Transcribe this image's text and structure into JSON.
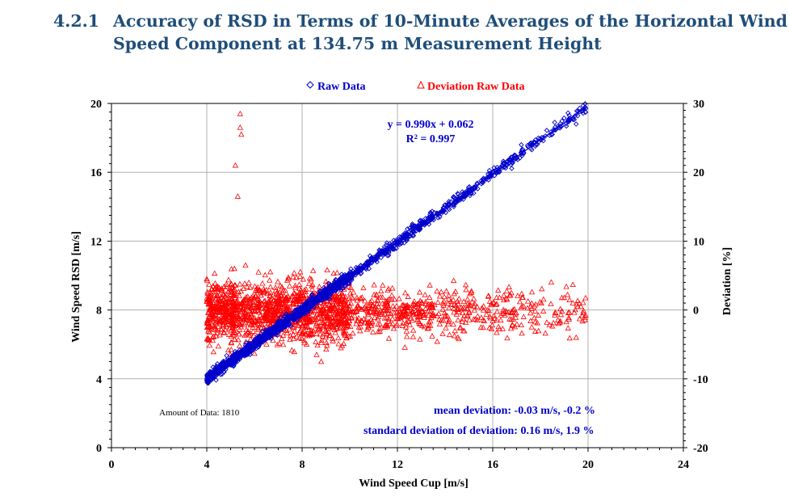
{
  "section": {
    "number": "4.2.1",
    "title": "Accuracy of RSD in Terms of 10-Minute Averages of the Horizontal Wind Speed Component at 134.75 m Measurement Height"
  },
  "colors": {
    "heading": "#1f4e79",
    "raw": "#0000cc",
    "deviation": "#ff0000",
    "grid": "#b0b0b0",
    "axis": "#000000"
  },
  "chart_data": {
    "type": "scatter",
    "xlabel": "Wind Speed Cup [m/s]",
    "ylabel": "Wind Speed RSD [m/s]",
    "y2label": "Deviation [%]",
    "xlim": [
      0,
      24
    ],
    "ylim": [
      0,
      20
    ],
    "y2lim": [
      -20,
      30
    ],
    "xticks": [
      0,
      4,
      8,
      12,
      16,
      20,
      24
    ],
    "yticks": [
      0,
      4,
      8,
      12,
      16,
      20
    ],
    "y2ticks": [
      -20,
      -10,
      0,
      10,
      20,
      30
    ],
    "legend": [
      {
        "label": "Raw Data",
        "marker": "diamond"
      },
      {
        "label": "Deviation Raw Data",
        "marker": "triangle"
      }
    ],
    "regression": {
      "slope": 0.99,
      "intercept": 0.062,
      "equation": "y = 0.990x + 0.062",
      "r2": "R² = 0.997",
      "x_range": [
        4.0,
        19.9
      ]
    },
    "annotations": {
      "amount": "Amount of Data: 1810",
      "mean": "mean deviation: -0.03 m/s, -0.2 %",
      "std": "standard deviation of deviation: 0.16 m/s, 1.9 %"
    },
    "series": [
      {
        "name": "Raw Data",
        "axis": "left",
        "marker": "diamond",
        "x_range": [
          4.0,
          19.9
        ],
        "n_points": 1810,
        "slope": 0.99,
        "intercept": 0.062,
        "scatter_sd": 0.16,
        "density": "concentrated between 5 and 12 m/s",
        "extra_points": [
          [
            19.9,
            19.7
          ],
          [
            19.5,
            18.8
          ],
          [
            18.6,
            18.9
          ],
          [
            17.2,
            17.6
          ]
        ]
      },
      {
        "name": "Deviation Raw Data",
        "axis": "right",
        "marker": "triangle",
        "x_range": [
          4.0,
          19.9
        ],
        "n_points": 1810,
        "mean": -0.2,
        "sd": 1.9,
        "outliers": [
          [
            5.4,
            28.5
          ],
          [
            5.4,
            26.5
          ],
          [
            5.45,
            25.5
          ],
          [
            5.2,
            21
          ],
          [
            5.3,
            16.5
          ],
          [
            4.0,
            4.5
          ],
          [
            8.8,
            -7.5
          ],
          [
            19.7,
            0.5
          ],
          [
            19.5,
            -4
          ]
        ]
      }
    ]
  }
}
